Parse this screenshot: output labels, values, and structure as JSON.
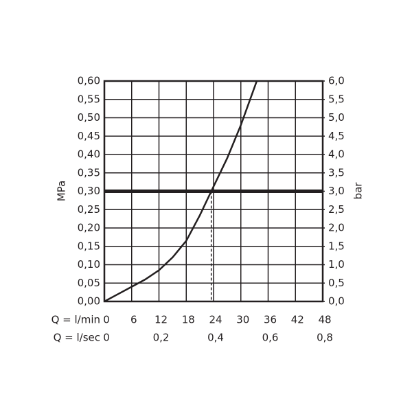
{
  "chart_data": {
    "type": "line",
    "xlabel": "Q = l/min",
    "x2label": "Q = l/sec",
    "ylabel": "MPa",
    "y2label": "bar",
    "x": [
      0,
      3,
      6,
      9,
      12,
      15,
      18,
      21,
      23.5,
      27,
      30,
      33.5
    ],
    "series": [
      {
        "color": "#231f20",
        "values": [
          0,
          0.02,
          0.04,
          0.06,
          0.085,
          0.12,
          0.165,
          0.235,
          0.3,
          0.39,
          0.48,
          0.6
        ]
      }
    ],
    "xlim": [
      0,
      48
    ],
    "xticks": [
      0,
      6,
      12,
      18,
      24,
      30,
      36,
      42,
      48
    ],
    "x2lim": [
      0,
      0.8
    ],
    "x2ticks": [
      0,
      {
        "value": 0.2,
        "label": "0,2"
      },
      {
        "value": 0.4,
        "label": "0,4"
      },
      {
        "value": 0.6,
        "label": "0,6"
      },
      {
        "value": 0.8,
        "label": "0,8"
      }
    ],
    "ylim": [
      0,
      0.6
    ],
    "yticks": [
      {
        "value": 0,
        "label": "0,00"
      },
      {
        "value": 0.05,
        "label": "0,05"
      },
      {
        "value": 0.1,
        "label": "0,10"
      },
      {
        "value": 0.15,
        "label": "0,15"
      },
      {
        "value": 0.2,
        "label": "0,20"
      },
      {
        "value": 0.25,
        "label": "0,25"
      },
      {
        "value": 0.3,
        "label": "0,30"
      },
      {
        "value": 0.35,
        "label": "0,35"
      },
      {
        "value": 0.4,
        "label": "0,40"
      },
      {
        "value": 0.45,
        "label": "0,45"
      },
      {
        "value": 0.5,
        "label": "0,50"
      },
      {
        "value": 0.55,
        "label": "0,55"
      },
      {
        "value": 0.6,
        "label": "0,60"
      }
    ],
    "y2lim": [
      0,
      6
    ],
    "y2ticks": [
      {
        "value": 0,
        "label": "0,0"
      },
      {
        "value": 0.5,
        "label": "0,5"
      },
      {
        "value": 1,
        "label": "1,0"
      },
      {
        "value": 1.5,
        "label": "1,5"
      },
      {
        "value": 2,
        "label": "2,0"
      },
      {
        "value": 2.5,
        "label": "2,5"
      },
      {
        "value": 3,
        "label": "3,0"
      },
      {
        "value": 3.5,
        "label": "3,5"
      },
      {
        "value": 4,
        "label": "4,0"
      },
      {
        "value": 4.5,
        "label": "4,5"
      },
      {
        "value": 5,
        "label": "5,0"
      },
      {
        "value": 5.5,
        "label": "5,5"
      },
      {
        "value": 6,
        "label": "6,0"
      }
    ],
    "reference_y": 0.3,
    "marker_x": 23.5,
    "grid": true
  }
}
